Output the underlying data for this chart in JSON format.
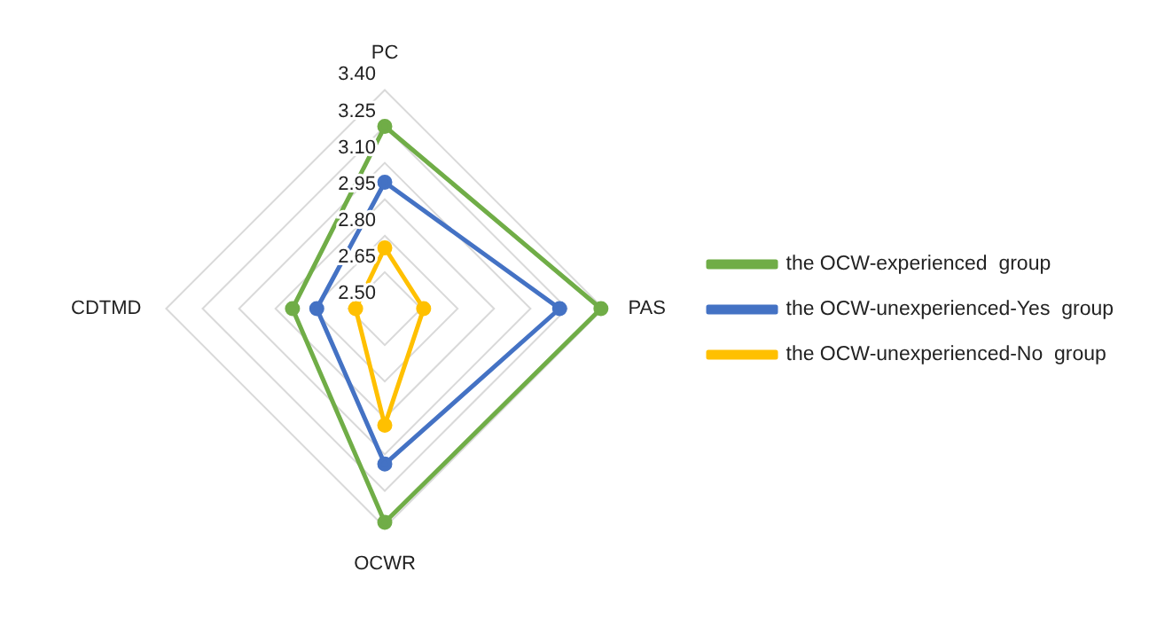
{
  "chart_data": {
    "type": "radar",
    "categories": [
      "PC",
      "PAS",
      "OCWR",
      "CDTMD"
    ],
    "series": [
      {
        "name": "the OCW-experienced  group",
        "color": "#70ad47",
        "values": [
          3.25,
          3.39,
          3.38,
          2.88
        ]
      },
      {
        "name": "the OCW-unexperienced-Yes  group",
        "color": "#4472c4",
        "values": [
          3.02,
          3.22,
          3.14,
          2.78
        ]
      },
      {
        "name": "the OCW-unexperienced-No  group",
        "color": "#ffc000",
        "values": [
          2.75,
          2.66,
          2.98,
          2.62
        ]
      }
    ],
    "ylim": [
      2.5,
      3.4
    ],
    "yticks": [
      {
        "value": 2.5,
        "label": "2.50"
      },
      {
        "value": 2.65,
        "label": "2.65"
      },
      {
        "value": 2.8,
        "label": "2.80"
      },
      {
        "value": 2.95,
        "label": "2.95"
      },
      {
        "value": 3.1,
        "label": "3.10"
      },
      {
        "value": 3.25,
        "label": "3.25"
      },
      {
        "value": 3.4,
        "label": "3.40"
      }
    ],
    "grid": true,
    "legend": "right",
    "marker": "circle"
  }
}
